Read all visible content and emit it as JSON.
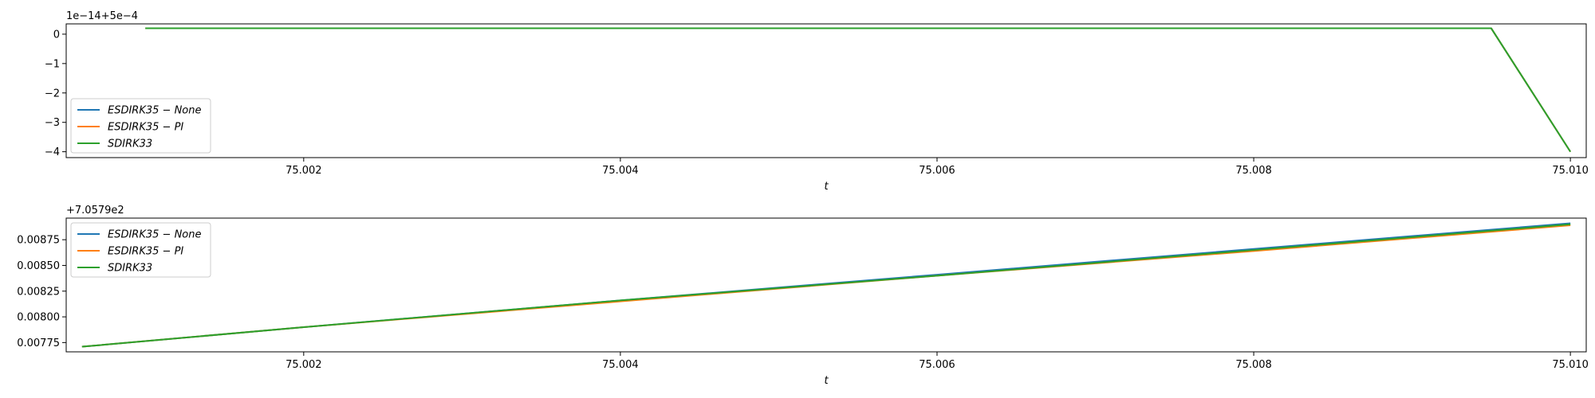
{
  "colors": {
    "blue": "#1f77b4",
    "orange": "#ff7f0e",
    "green": "#2ca02c"
  },
  "chart_data": [
    {
      "type": "line",
      "offset_text": "1e−14+5e−4",
      "xlabel": "t",
      "ylabel": "",
      "xlim": [
        75.0005,
        75.0101
      ],
      "ylim": [
        -4.2,
        0.35
      ],
      "x_ticks": [
        75.002,
        75.004,
        75.006,
        75.008,
        75.01
      ],
      "x_tick_labels": [
        "75.002",
        "75.004",
        "75.006",
        "75.008",
        "75.010"
      ],
      "y_ticks": [
        0,
        -1,
        -2,
        -3,
        -4
      ],
      "y_tick_labels": [
        "0",
        "−1",
        "−2",
        "−3",
        "−4"
      ],
      "legend_position": "lower-left",
      "grid": false,
      "series": [
        {
          "name": "ESDIRK35 − None",
          "color": "#1f77b4",
          "x": [
            75.001,
            75.0095,
            75.01
          ],
          "y": [
            0.2,
            0.2,
            -4.0
          ]
        },
        {
          "name": "ESDIRK35 − PI",
          "color": "#ff7f0e",
          "x": [
            75.001,
            75.0095,
            75.01
          ],
          "y": [
            0.2,
            0.2,
            -4.0
          ]
        },
        {
          "name": "SDIRK33",
          "color": "#2ca02c",
          "x": [
            75.001,
            75.0095,
            75.01
          ],
          "y": [
            0.2,
            0.2,
            -4.0
          ]
        }
      ]
    },
    {
      "type": "line",
      "offset_text": "+7.0579e2",
      "xlabel": "t",
      "ylabel": "",
      "xlim": [
        75.0005,
        75.0101
      ],
      "ylim": [
        0.00766,
        0.00896
      ],
      "x_ticks": [
        75.002,
        75.004,
        75.006,
        75.008,
        75.01
      ],
      "x_tick_labels": [
        "75.002",
        "75.004",
        "75.006",
        "75.008",
        "75.010"
      ],
      "y_ticks": [
        0.00775,
        0.008,
        0.00825,
        0.0085,
        0.00875
      ],
      "y_tick_labels": [
        "0.00775",
        "0.00800",
        "0.00825",
        "0.00850",
        "0.00875"
      ],
      "legend_position": "upper-left",
      "grid": false,
      "series": [
        {
          "name": "ESDIRK35 − None",
          "color": "#1f77b4",
          "x": [
            75.0006,
            75.002,
            75.004,
            75.006,
            75.008,
            75.01
          ],
          "y": [
            0.00771,
            0.0079,
            0.00816,
            0.00841,
            0.00866,
            0.00891
          ]
        },
        {
          "name": "ESDIRK35 − PI",
          "color": "#ff7f0e",
          "x": [
            75.0006,
            75.002,
            75.004,
            75.006,
            75.008,
            75.01
          ],
          "y": [
            0.00771,
            0.0079,
            0.00815,
            0.0084,
            0.00864,
            0.00889
          ]
        },
        {
          "name": "SDIRK33",
          "color": "#2ca02c",
          "x": [
            75.0006,
            75.002,
            75.004,
            75.006,
            75.008,
            75.01
          ],
          "y": [
            0.00771,
            0.0079,
            0.00816,
            0.0084,
            0.00865,
            0.0089
          ]
        }
      ]
    }
  ]
}
